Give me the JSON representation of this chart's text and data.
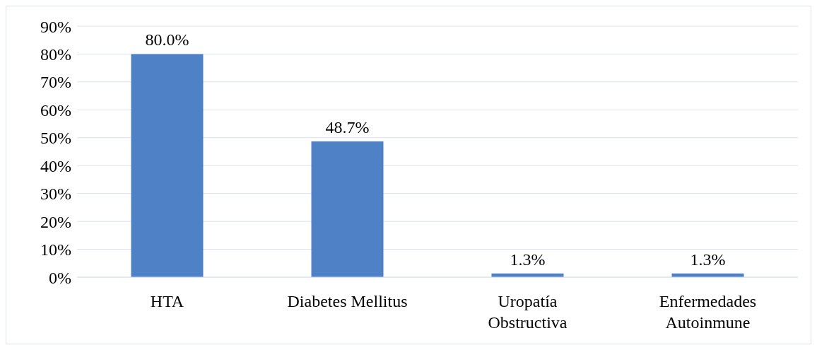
{
  "chart_data": {
    "type": "bar",
    "categories": [
      "HTA",
      "Diabetes Mellitus",
      "Uropatía Obstructiva",
      "Enfermedades Autoinmune"
    ],
    "values": [
      80.0,
      48.7,
      1.3,
      1.3
    ],
    "value_labels": [
      "80.0%",
      "48.7%",
      "1.3%",
      "1.3%"
    ],
    "color": "#4f81c7",
    "ylim": [
      0,
      90
    ],
    "yticks": [
      {
        "value": 0,
        "label": "0%"
      },
      {
        "value": 10,
        "label": "10%"
      },
      {
        "value": 20,
        "label": "20%"
      },
      {
        "value": 30,
        "label": "30%"
      },
      {
        "value": 40,
        "label": "40%"
      },
      {
        "value": 50,
        "label": "50%"
      },
      {
        "value": 60,
        "label": "60%"
      },
      {
        "value": 70,
        "label": "70%"
      },
      {
        "value": 80,
        "label": "80%"
      },
      {
        "value": 90,
        "label": "90%"
      }
    ],
    "grid": "y"
  }
}
